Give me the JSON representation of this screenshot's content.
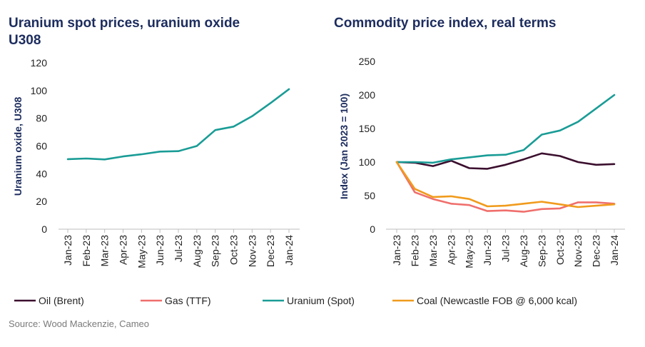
{
  "source": "Source: Wood Mackenzie, Cameo",
  "chart_data": [
    {
      "type": "line",
      "title_lines": [
        "Uranium spot prices, uranium oxide",
        "U308"
      ],
      "ylabel": "Uranium oxide, U308",
      "xlabel": "",
      "ylim": [
        0,
        120
      ],
      "yticks": [
        "0",
        "20",
        "40",
        "60",
        "80",
        "100",
        "120"
      ],
      "grid": false,
      "categories": [
        "Jan-23",
        "Feb-23",
        "Mar-23",
        "Apr-23",
        "May-23",
        "Jun-23",
        "Jul-23",
        "Aug-23",
        "Sep-23",
        "Oct-23",
        "Nov-23",
        "Dec-23",
        "Jan-24"
      ],
      "series": [
        {
          "color": "#1a9c96",
          "values": [
            50.5,
            51,
            50.3,
            52.5,
            54,
            56,
            56.3,
            60,
            71.5,
            74,
            81.5,
            91,
            101
          ]
        }
      ]
    },
    {
      "type": "line",
      "title_lines": [
        "Commodity price index, real terms"
      ],
      "ylabel": "Index (Jan 2023 = 100)",
      "xlabel": "",
      "ylim": [
        0,
        250
      ],
      "yticks": [
        "0",
        "50",
        "100",
        "150",
        "200",
        "250"
      ],
      "grid": false,
      "legend_position": "bottom",
      "categories": [
        "Jan-23",
        "Feb-23",
        "Mar-23",
        "Apr-23",
        "May-23",
        "Jun-23",
        "Jul-23",
        "Aug-23",
        "Sep-23",
        "Oct-23",
        "Nov-23",
        "Dec-23",
        "Jan-24"
      ],
      "series": [
        {
          "name": "Oil (Brent)",
          "color": "#3b0f2e",
          "values": [
            100,
            99,
            94,
            102,
            91,
            90,
            96,
            104,
            113,
            109,
            100,
            96,
            97
          ]
        },
        {
          "name": "Gas (TTF)",
          "color": "#ef6f6c",
          "values": [
            100,
            55,
            45,
            38,
            36,
            27,
            28,
            26,
            30,
            31,
            40,
            40,
            38
          ]
        },
        {
          "name": "Uranium (Spot)",
          "color": "#1a9c96",
          "values": [
            100,
            100,
            99,
            104,
            107,
            110,
            111,
            118,
            141,
            147,
            160,
            180,
            200
          ]
        },
        {
          "name": "Coal (Newcastle FOB @ 6,000 kcal)",
          "color": "#f09b1c",
          "values": [
            100,
            60,
            48,
            49,
            45,
            34,
            35,
            38,
            41,
            37,
            33,
            35,
            37
          ]
        }
      ]
    }
  ]
}
